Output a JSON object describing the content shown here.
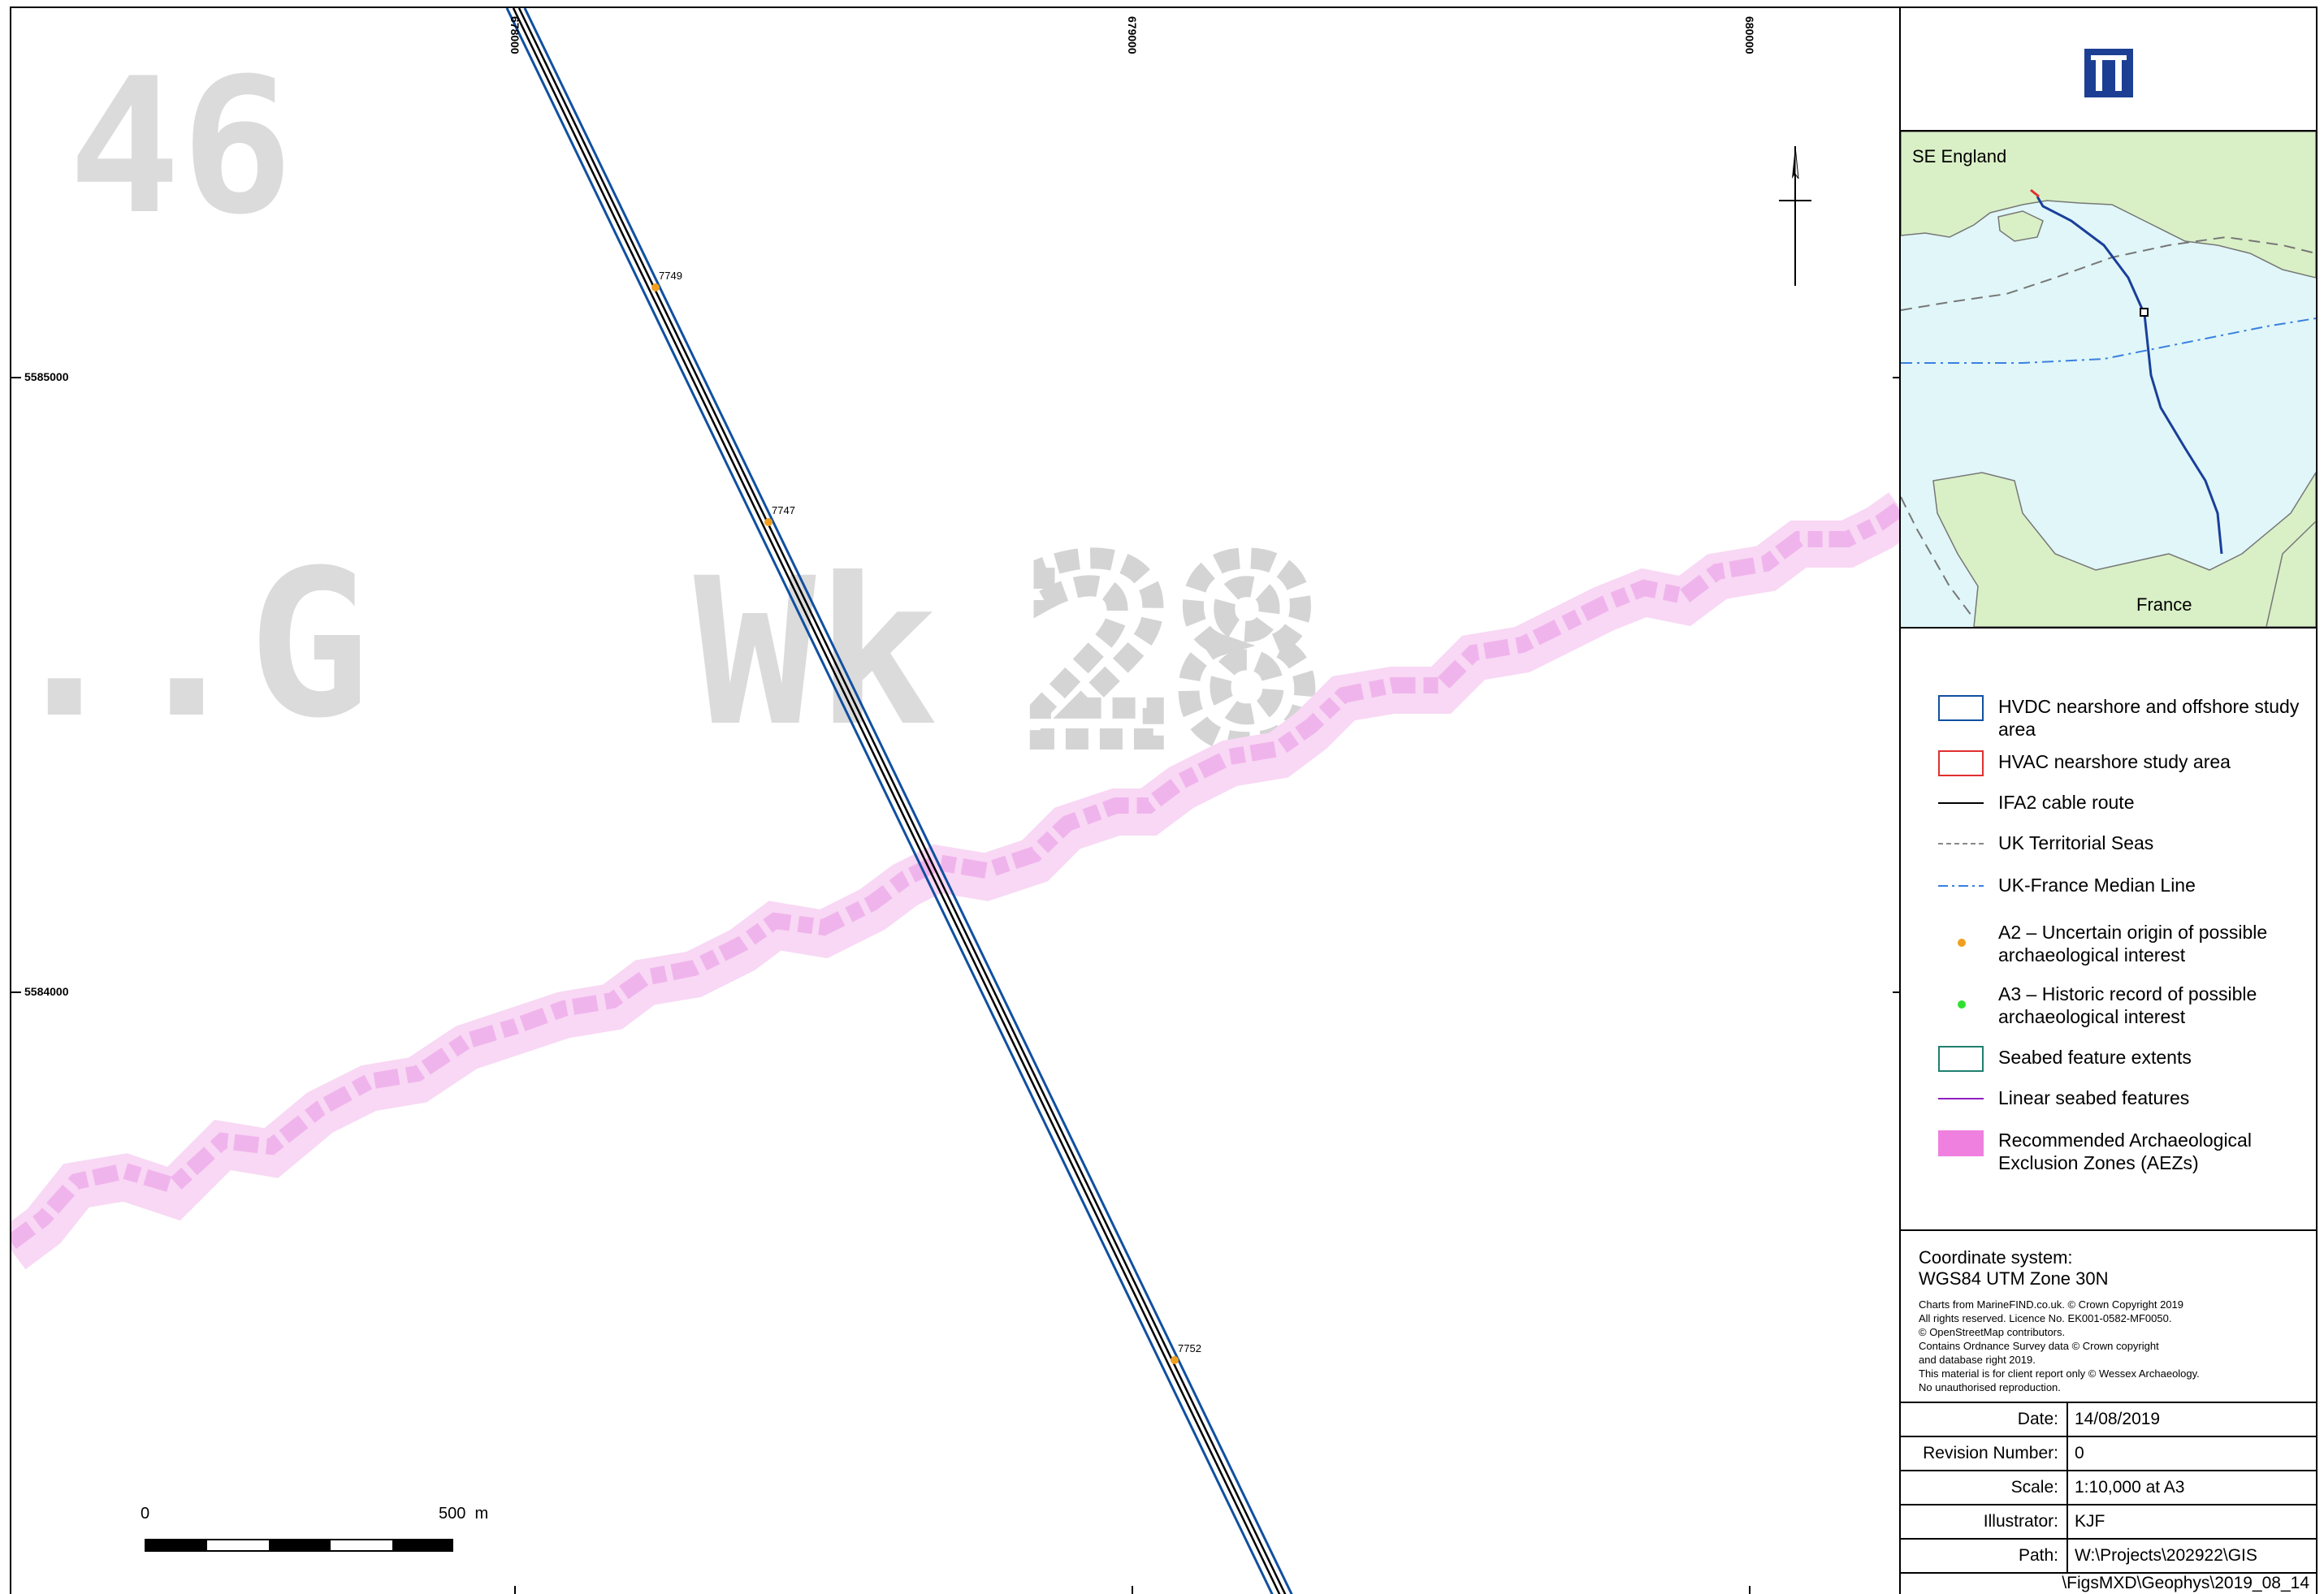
{
  "map": {
    "easting_labels": [
      "678000",
      "679000",
      "680000"
    ],
    "northing_labels": [
      "5585000",
      "5584000"
    ],
    "points": [
      {
        "id": "7749",
        "color": "#f0a020"
      },
      {
        "id": "7747",
        "color": "#f0a020"
      },
      {
        "id": "7752",
        "color": "#f0a020"
      }
    ],
    "chart_background_text": [
      "46",
      "..G",
      "Wk",
      "28"
    ],
    "scale_bar": {
      "start_label": "0",
      "end_label": "500  m"
    },
    "colors": {
      "study_area": "#1050a0",
      "cable_route": "#000000",
      "aez": "#f090e0"
    }
  },
  "panel": {
    "logo_icon": "wessex-archaeology-logo-icon",
    "inset": {
      "label_top": "SE England",
      "label_bottom": "France",
      "colors": {
        "sea": "#e0f6f8",
        "land": "#d9f0c6",
        "route": "#1a3f9a"
      }
    },
    "legend": [
      {
        "key": "hvdc",
        "label": "HVDC nearshore and offshore study area",
        "symbol": "box",
        "color": "#1050a0"
      },
      {
        "key": "hvac",
        "label": "HVAC nearshore study area",
        "symbol": "box",
        "color": "#e03030"
      },
      {
        "key": "ifa2",
        "label": "IFA2 cable route",
        "symbol": "line",
        "color": "#000000"
      },
      {
        "key": "territorial",
        "label": "UK Territorial Seas",
        "symbol": "dash",
        "color": "#888888"
      },
      {
        "key": "median",
        "label": "UK-France Median Line",
        "symbol": "dashdot",
        "color": "#3a80e0"
      },
      {
        "key": "a2",
        "label": "A2 – Uncertain origin of possible archaeological interest",
        "symbol": "dot",
        "color": "#f0a020"
      },
      {
        "key": "a3",
        "label": "A3 – Historic record of possible archaeological interest",
        "symbol": "dot",
        "color": "#30e030"
      },
      {
        "key": "seabed_extent",
        "label": "Seabed feature extents",
        "symbol": "box",
        "color": "#208070"
      },
      {
        "key": "linear_seabed",
        "label": "Linear seabed features",
        "symbol": "line",
        "color": "#9020c0"
      },
      {
        "key": "aez",
        "label": "Recommended Archaeological Exclusion Zones (AEZs)",
        "symbol": "fill",
        "color": "#f080e0"
      }
    ],
    "coordinate_system": {
      "title": "Coordinate system:",
      "value": "WGS84 UTM Zone 30N",
      "credits": "Charts from MarineFIND.co.uk. © Crown Copyright 2019\nAll rights reserved. Licence No. EK001-0582-MF0050.\n© OpenStreetMap contributors.\nContains Ordnance Survey data © Crown copyright\nand database right 2019.\nThis material is for client report only © Wessex Archaeology.\nNo unauthorised reproduction."
    },
    "info": [
      {
        "key": "Date:",
        "value": "14/08/2019"
      },
      {
        "key": "Revision Number:",
        "value": "0"
      },
      {
        "key": "Scale:",
        "value": "1:10,000 at A3"
      },
      {
        "key": "Illustrator:",
        "value": "KJF"
      },
      {
        "key": "Path:",
        "value": "W:\\Projects\\202922\\GIS"
      }
    ],
    "path_continuation": "\\FigsMXD\\Geophys\\2019_08_14"
  }
}
